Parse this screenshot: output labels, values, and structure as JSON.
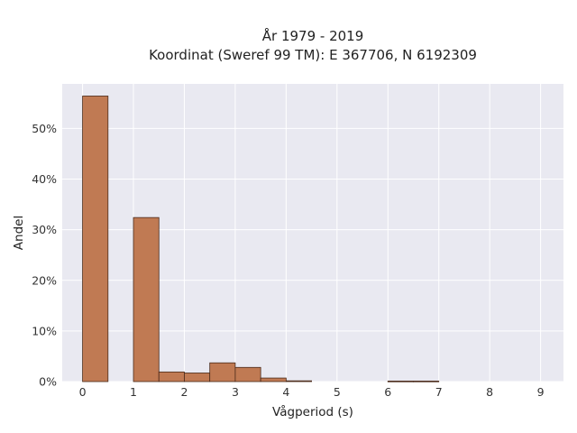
{
  "chart_data": {
    "type": "bar",
    "title": "År 1979 - 2019",
    "subtitle": "Koordinat (Sweref 99 TM): E 367706, N 6192309",
    "xlabel": "Vågperiod (s)",
    "ylabel": "Andel",
    "xlim": [
      -0.4,
      9.45
    ],
    "ylim": [
      0,
      58.8
    ],
    "x_ticks": [
      0,
      1,
      2,
      3,
      4,
      5,
      6,
      7,
      8,
      9
    ],
    "x_tick_labels": [
      "0",
      "1",
      "2",
      "3",
      "4",
      "5",
      "6",
      "7",
      "8",
      "9"
    ],
    "y_ticks": [
      0,
      10,
      20,
      30,
      40,
      50
    ],
    "y_tick_labels": [
      "0%",
      "10%",
      "20%",
      "30%",
      "40%",
      "50%"
    ],
    "bin_width": 0.5,
    "bins": [
      {
        "x0": 0.0,
        "value": 56.4
      },
      {
        "x0": 0.5,
        "value": 0
      },
      {
        "x0": 1.0,
        "value": 32.4
      },
      {
        "x0": 1.5,
        "value": 1.9
      },
      {
        "x0": 2.0,
        "value": 1.7
      },
      {
        "x0": 2.5,
        "value": 3.7
      },
      {
        "x0": 3.0,
        "value": 2.8
      },
      {
        "x0": 3.5,
        "value": 0.7
      },
      {
        "x0": 4.0,
        "value": 0.15
      },
      {
        "x0": 6.0,
        "value": 0.1
      },
      {
        "x0": 6.5,
        "value": 0.1
      }
    ],
    "grid": true,
    "bar_color": "#c07a53",
    "bar_edge_color": "#4a2a1a",
    "plot_background": "#e9e9f1",
    "grid_color": "#ffffff"
  }
}
